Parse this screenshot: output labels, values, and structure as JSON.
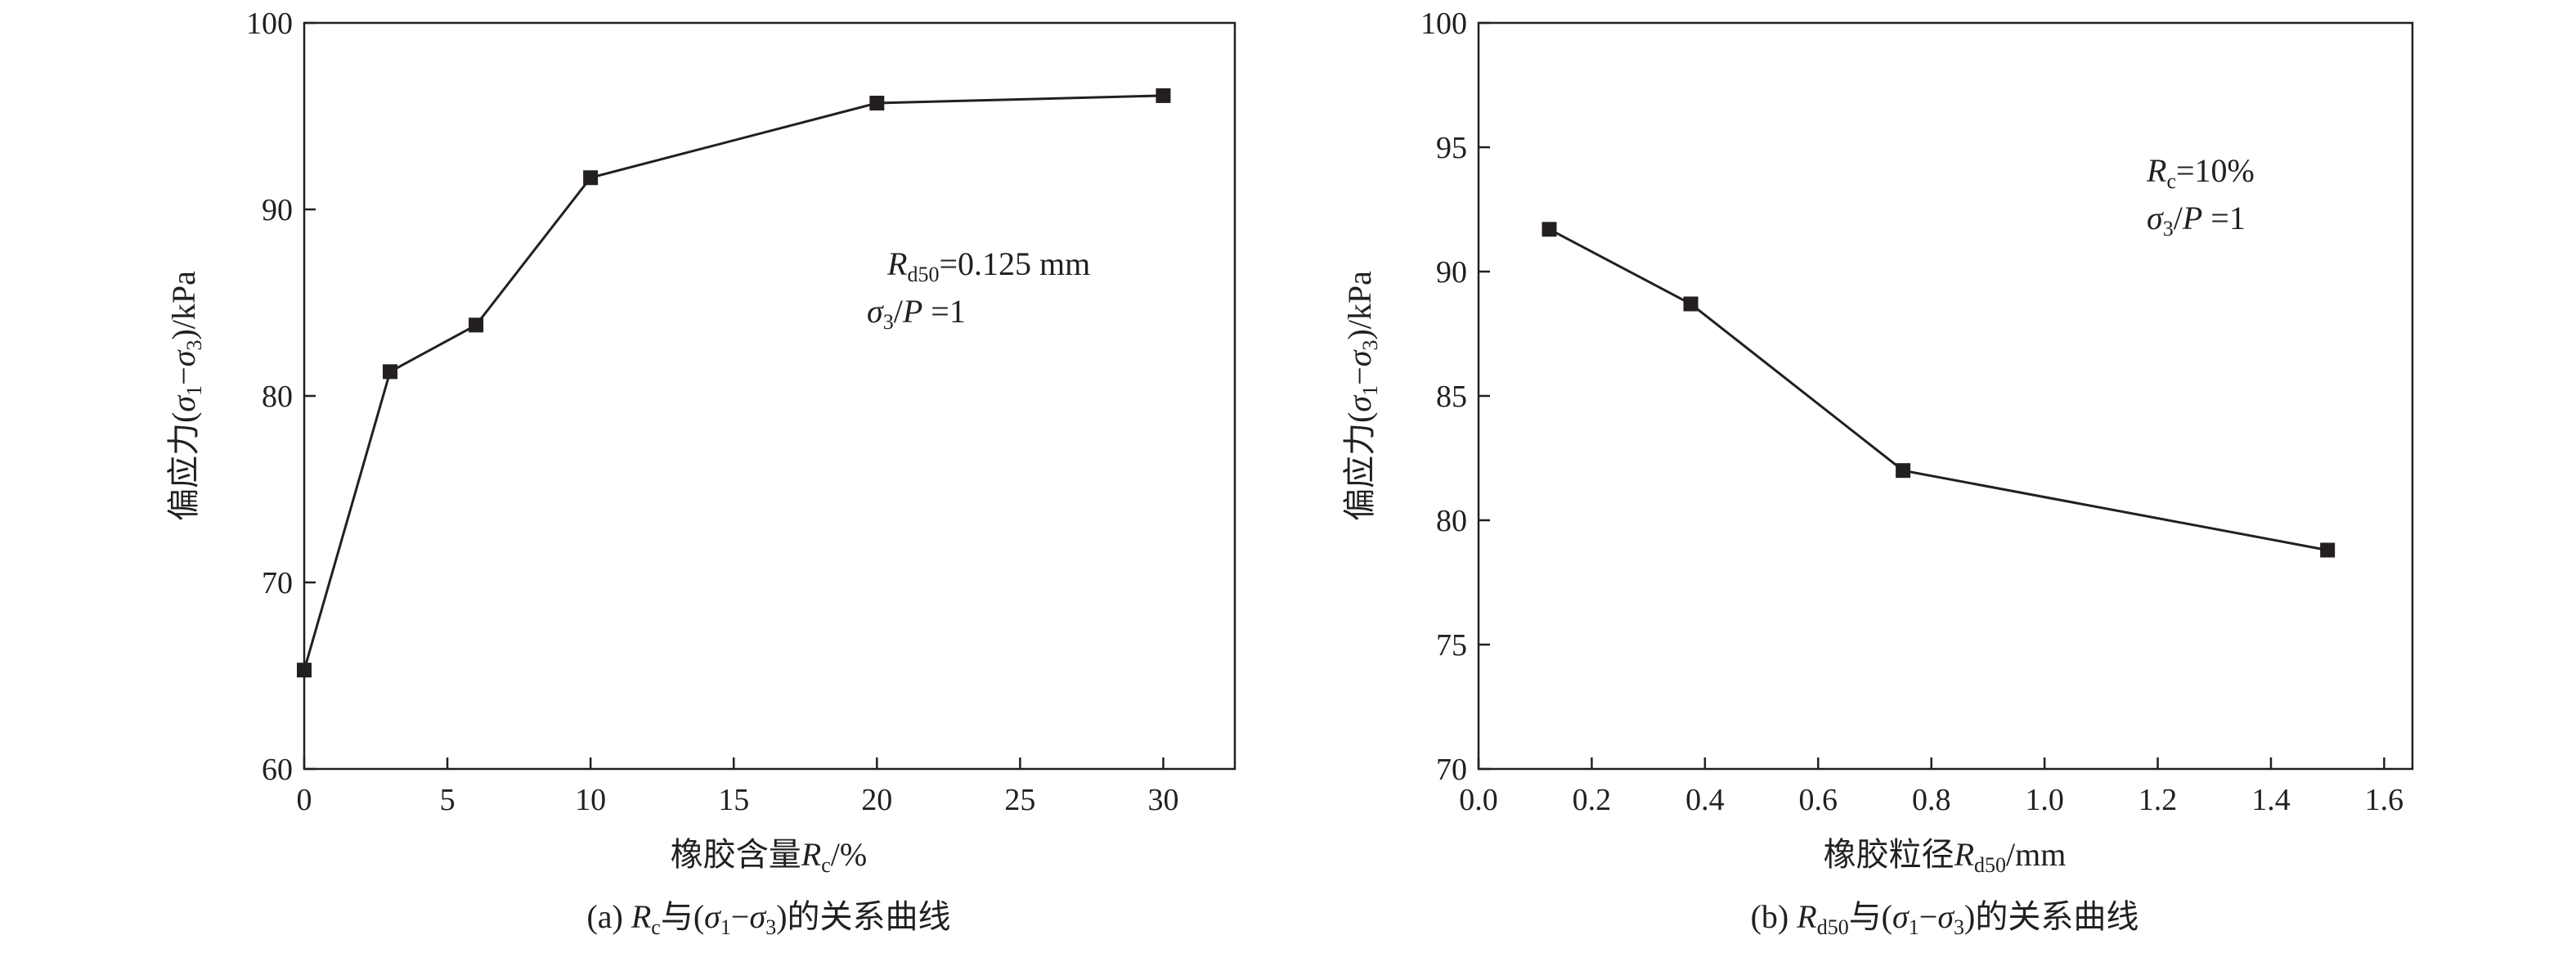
{
  "charts": [
    {
      "chart_data": {
        "type": "line",
        "x": [
          0,
          3,
          6,
          10,
          20,
          30
        ],
        "series": [
          {
            "values": [
              65.3,
              81.3,
              83.8,
              91.7,
              95.7,
              96.1
            ]
          }
        ],
        "xlim": [
          0,
          32.5
        ],
        "ylim": [
          60,
          100
        ],
        "xticks": [
          0,
          5,
          10,
          15,
          20,
          25,
          30
        ],
        "yticks": [
          60,
          70,
          80,
          90,
          100
        ],
        "grid": false,
        "marker": "square"
      },
      "xlabel": {
        "text": "橡胶含量",
        "var": "R",
        "var_sub": "c",
        "suffix": "/%"
      },
      "ylabel": {
        "prefix": "偏应力(",
        "s1": "σ",
        "s1_sub": "1",
        "mid": "−",
        "s2": "σ",
        "s2_sub": "3",
        "suffix": ")/kPa"
      },
      "annotation": {
        "line1": {
          "var": "R",
          "var_sub": "d50",
          "rest": "=0.125 mm"
        },
        "line2": {
          "var": "σ",
          "var_sub": "3",
          "rest": "/",
          "var2": "P",
          "rest2": " =1"
        }
      },
      "caption": {
        "pre": "(a) ",
        "var": "R",
        "var_sub": "c",
        "mid": "与(",
        "s1": "σ",
        "s1_sub": "1",
        "dash": "−",
        "s2": "σ",
        "s2_sub": "3",
        "post": ")的关系曲线"
      }
    },
    {
      "chart_data": {
        "type": "line",
        "x": [
          0.125,
          0.375,
          0.75,
          1.5
        ],
        "series": [
          {
            "values": [
              91.7,
              88.7,
              82.0,
              78.8
            ]
          }
        ],
        "xlim": [
          0,
          1.65
        ],
        "ylim": [
          70,
          100
        ],
        "xticks": [
          0.0,
          0.2,
          0.4,
          0.6,
          0.8,
          1.0,
          1.2,
          1.4,
          1.6
        ],
        "yticks": [
          70,
          75,
          80,
          85,
          90,
          95,
          100
        ],
        "grid": false,
        "marker": "square"
      },
      "xlabel": {
        "text": "橡胶粒径",
        "var": "R",
        "var_sub": "d50",
        "suffix": "/mm"
      },
      "ylabel": {
        "prefix": "偏应力(",
        "s1": "σ",
        "s1_sub": "1",
        "mid": "−",
        "s2": "σ",
        "s2_sub": "3",
        "suffix": ")/kPa"
      },
      "annotation": {
        "line1": {
          "var": "R",
          "var_sub": "c",
          "rest": "=10%"
        },
        "line2": {
          "var": "σ",
          "var_sub": "3",
          "rest": "/",
          "var2": "P",
          "rest2": " =1"
        }
      },
      "caption": {
        "pre": "(b) ",
        "var": "R",
        "var_sub": "d50",
        "mid": "与(",
        "s1": "σ",
        "s1_sub": "1",
        "dash": "−",
        "s2": "σ",
        "s2_sub": "3",
        "post": ")的关系曲线"
      }
    }
  ],
  "colors": {
    "ink": "#231f20",
    "background": "#ffffff"
  }
}
